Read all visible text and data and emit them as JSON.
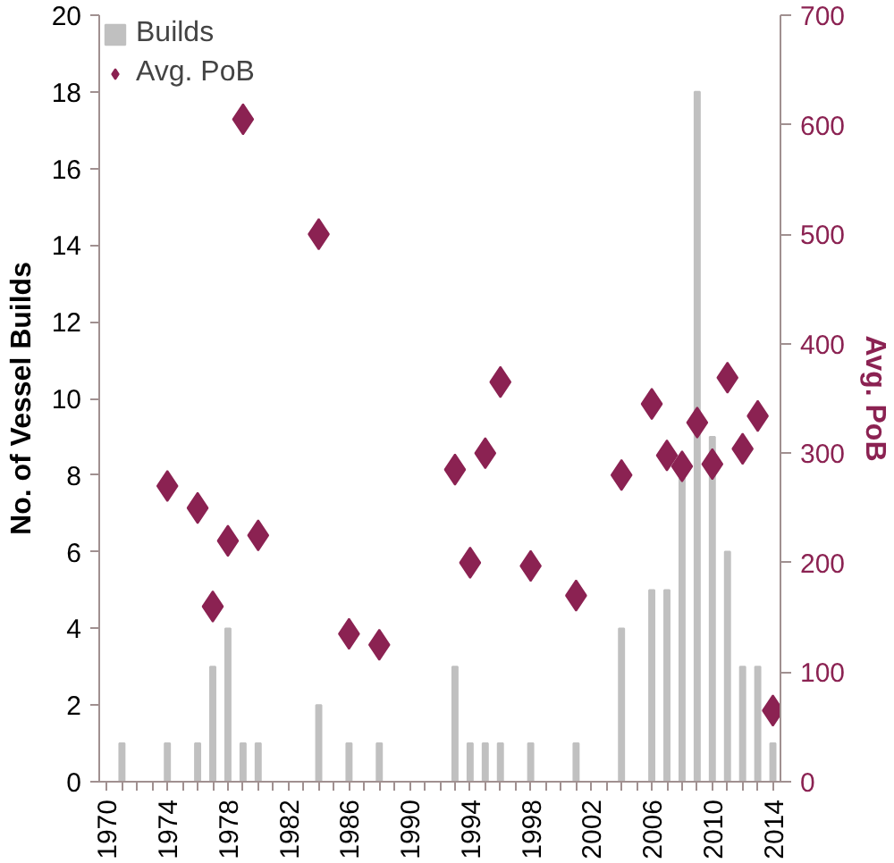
{
  "chart_data": {
    "type": "bar",
    "ylabel": "No. of Vessel Builds",
    "y2label": "Avg. PoB",
    "categories": [
      "1970",
      null,
      null,
      null,
      "1974",
      null,
      null,
      null,
      "1978",
      null,
      null,
      null,
      "1982",
      null,
      null,
      null,
      "1986",
      null,
      null,
      null,
      "1990",
      null,
      null,
      null,
      "1994",
      null,
      null,
      null,
      "1998",
      null,
      null,
      null,
      "2002",
      null,
      null,
      null,
      "2006",
      null,
      null,
      null,
      "2010",
      null,
      null,
      null,
      "2014"
    ],
    "series": [
      {
        "name": "Builds",
        "color": "#c0c0c0",
        "values": [
          0,
          1,
          0,
          0,
          1,
          0,
          1,
          3,
          4,
          1,
          1,
          0,
          0,
          0,
          2,
          0,
          1,
          0,
          1,
          0,
          0,
          0,
          0,
          3,
          1,
          1,
          1,
          0,
          1,
          0,
          0,
          1,
          0,
          0,
          4,
          0,
          5,
          5,
          8,
          18,
          9,
          6,
          3,
          3,
          1
        ]
      },
      {
        "name": "Avg. PoB",
        "type": "scatter",
        "axis": "y2",
        "marker": "diamond",
        "color": "#8b2252",
        "values": [
          null,
          null,
          null,
          null,
          270,
          null,
          250,
          160,
          220,
          605,
          225,
          null,
          null,
          null,
          500,
          null,
          135,
          null,
          125,
          null,
          null,
          null,
          null,
          285,
          200,
          300,
          365,
          null,
          197,
          null,
          null,
          170,
          null,
          null,
          280,
          null,
          345,
          298,
          288,
          328,
          290,
          369,
          304,
          334,
          65
        ]
      }
    ],
    "ylim": [
      0,
      20
    ],
    "yticks": [
      0,
      2,
      4,
      6,
      8,
      10,
      12,
      14,
      16,
      18,
      20
    ],
    "y2lim": [
      0,
      700
    ],
    "y2ticks": [
      0,
      100,
      200,
      300,
      400,
      500,
      600,
      700
    ],
    "grid": false,
    "legend": "top left"
  }
}
